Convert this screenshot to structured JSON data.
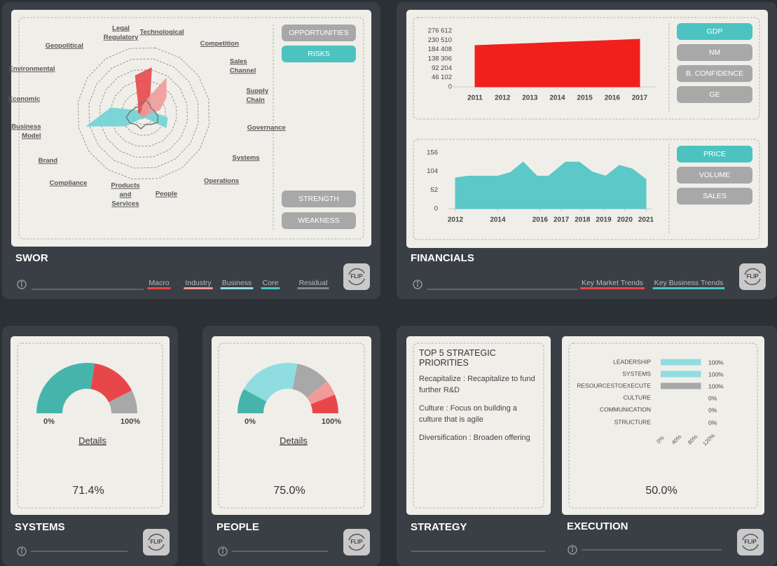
{
  "swor": {
    "title": "SWOR",
    "radar": {
      "type": "radar",
      "labels": [
        [
          "Technological"
        ],
        [
          "Competition"
        ],
        [
          "Sales",
          "Channel"
        ],
        [
          "Supply",
          "Chain"
        ],
        [
          "Governance"
        ],
        [
          "Systems"
        ],
        [
          "Operations"
        ],
        [
          "People"
        ],
        [
          "Products",
          "and",
          "Services"
        ],
        [
          "Compliance"
        ],
        [
          "Brand"
        ],
        [
          "Business",
          "Model"
        ],
        [
          "Economic"
        ],
        [
          "Environmental"
        ],
        [
          "Geopolitical"
        ],
        [
          "Legal",
          "Regulatory"
        ]
      ],
      "rlim": [
        0,
        6
      ],
      "rticks": [
        1,
        2,
        3,
        4,
        5,
        6
      ],
      "series": [
        {
          "color": "#6fd3d6",
          "fill": true,
          "values": [
            0.4,
            0.4,
            0.5,
            0.8,
            2.2,
            2.4,
            0.6,
            0.4,
            0.5,
            0.6,
            2.0,
            5.3,
            3.0,
            0.5,
            0.4,
            0.4
          ]
        },
        {
          "color": "#e8474a",
          "fill": true,
          "values": [
            4.2,
            1.0,
            0.5,
            0.4,
            0.3,
            0.3,
            0.3,
            0.3,
            0.3,
            0.3,
            0.3,
            0.3,
            0.5,
            0.6,
            0.8,
            3.5
          ]
        },
        {
          "color": "#f09a9a",
          "fill": true,
          "values": [
            1.2,
            3.8,
            2.5,
            1.5,
            0.4,
            0.3,
            0.3,
            0.3,
            0.3,
            0.3,
            0.3,
            0.3,
            0.3,
            0.3,
            0.3,
            0.6
          ]
        },
        {
          "color": "#777777",
          "fill": false,
          "values": [
            1.2,
            1.0,
            0.8,
            1.0,
            1.3,
            1.5,
            1.2,
            1.0,
            1.4,
            1.2,
            1.5,
            1.6,
            1.2,
            0.9,
            0.8,
            1.0
          ]
        }
      ]
    },
    "buttons": [
      {
        "label": "OPPORTUNITIES",
        "active": false
      },
      {
        "label": "RISKS",
        "active": true
      },
      {
        "label": "STRENGTH",
        "active": false
      },
      {
        "label": "WEAKNESS",
        "active": false
      }
    ],
    "legend": [
      {
        "name": "Macro",
        "color": "#e8474a"
      },
      {
        "name": "Industry",
        "color": "#f09a9a"
      },
      {
        "name": "Business",
        "color": "#8fdde0"
      },
      {
        "name": "Core",
        "color": "#4cc3c1"
      },
      {
        "name": "Residual",
        "color": "#888888"
      }
    ]
  },
  "financials": {
    "title": "FINANCIALS",
    "charts": [
      {
        "type": "area",
        "color": "#f0201c",
        "x": [
          2011,
          2012,
          2013,
          2014,
          2015,
          2016,
          2017
        ],
        "values": [
          204000,
          209000,
          214000,
          219500,
          224500,
          229500,
          235000
        ],
        "xlim": [
          2011,
          2017
        ],
        "xticks": [
          2011,
          2012,
          2013,
          2014,
          2015,
          2016,
          2017
        ],
        "ylim": [
          0,
          276612
        ],
        "yticks": [
          0,
          {
            "value": 46102,
            "label": "46 102"
          },
          {
            "value": 92204,
            "label": "92 204"
          },
          {
            "value": 138306,
            "label": "138 306"
          },
          {
            "value": 184408,
            "label": "184 408"
          },
          {
            "value": 230510,
            "label": "230 510"
          },
          {
            "value": 276612,
            "label": "276 612"
          }
        ],
        "buttons": [
          {
            "label": "GDP",
            "active": true
          },
          {
            "label": "NM",
            "active": false
          },
          {
            "label": "B. CONFIDENCE",
            "active": false
          },
          {
            "label": "GE",
            "active": false
          }
        ]
      },
      {
        "type": "area",
        "color": "#5cc8c8",
        "x": [
          2012,
          2012.6,
          2014,
          2014.6,
          2015.2,
          2015.85,
          2016.4,
          2017.2,
          2017.85,
          2018.45,
          2019.1,
          2019.75,
          2020.35,
          2021
        ],
        "values": [
          86,
          91,
          91,
          101,
          130,
          91,
          91,
          130,
          130,
          103,
          91,
          121,
          111,
          82
        ],
        "xlim": [
          2012,
          2021
        ],
        "xticks": [
          2012,
          2014,
          2016,
          2017,
          2018,
          2019,
          2020,
          2021
        ],
        "ylim": [
          0,
          156
        ],
        "yticks": [
          0,
          52,
          104,
          156
        ],
        "buttons": [
          {
            "label": "PRICE",
            "active": true
          },
          {
            "label": "VOLUME",
            "active": false
          },
          {
            "label": "SALES",
            "active": false
          }
        ]
      }
    ],
    "legend": [
      {
        "name": "Key Market Trends",
        "color": "#e8474a"
      },
      {
        "name": "Key Business Trends",
        "color": "#4cc3c1"
      }
    ]
  },
  "systems": {
    "title": "SYSTEMS",
    "gauge": {
      "type": "gauge",
      "segments": [
        {
          "color": "#45b5ac",
          "value": 55
        },
        {
          "color": "#e8474a",
          "value": 30
        },
        {
          "color": "#a8a8a8",
          "value": 15
        }
      ],
      "min_label": "0%",
      "max_label": "100%"
    },
    "link": "Details",
    "score": "71.4%"
  },
  "people": {
    "title": "PEOPLE",
    "gauge": {
      "type": "gauge",
      "segments": [
        {
          "color": "#45b5ac",
          "value": 16
        },
        {
          "color": "#8fdde0",
          "value": 40
        },
        {
          "color": "#a8a8a8",
          "value": 22
        },
        {
          "color": "#f09a9a",
          "value": 10
        },
        {
          "color": "#e8474a",
          "value": 12
        }
      ],
      "min_label": "0%",
      "max_label": "100%"
    },
    "link": "Details",
    "score": "75.0%"
  },
  "strategy": {
    "title": "STRATEGY",
    "heading": "TOP 5 STRATEGIC PRIORITIES",
    "items": [
      "Recapitalize : Recapitalize to fund further R&D",
      "Culture : Focus on building a culture that is agile",
      "Diversification : Broaden offering"
    ]
  },
  "execution": {
    "title": "EXECUTION",
    "chart": {
      "type": "bar",
      "orientation": "horizontal",
      "categories": [
        "LEADERSHIP",
        "SYSTEMS",
        "RESOURCESTOEXECUTE",
        "CULTURE",
        "COMMUNICATION",
        "STRUCTURE"
      ],
      "values": [
        100,
        100,
        100,
        0,
        0,
        0
      ],
      "value_labels": [
        "100%",
        "100%",
        "100%",
        "0%",
        "0%",
        "0%"
      ],
      "colors": [
        "#8fdde0",
        "#8fdde0",
        "#a8a8a8",
        "#f09a9a",
        "#f09a9a",
        "#e8474a"
      ],
      "xlim": [
        0,
        120
      ],
      "xticks": [
        {
          "value": 0,
          "label": "0%"
        },
        {
          "value": 40,
          "label": "40%"
        },
        {
          "value": 80,
          "label": "80%"
        },
        {
          "value": 120,
          "label": "120%"
        }
      ]
    },
    "score": "50.0%"
  },
  "flip_label": "FLIP"
}
